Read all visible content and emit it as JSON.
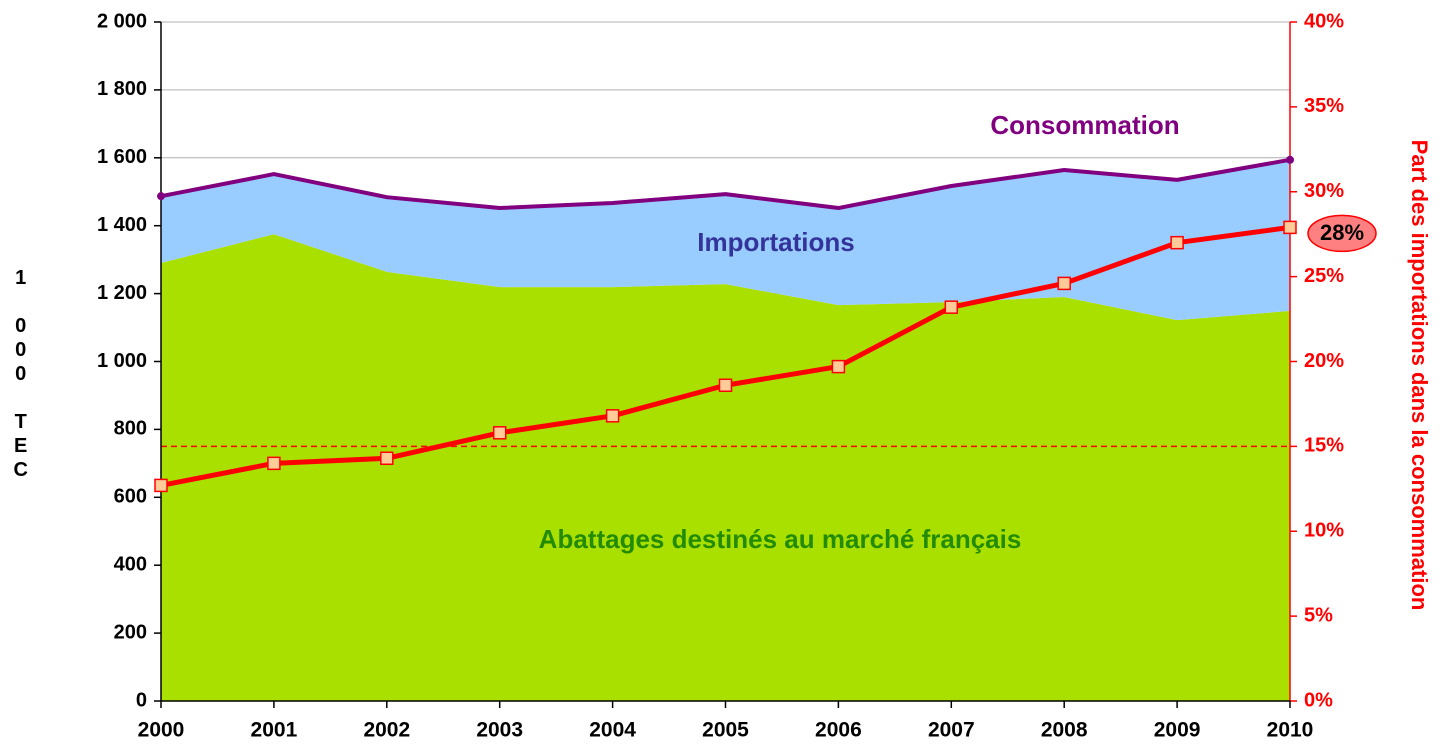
{
  "chart_data": {
    "type": "area",
    "categories": [
      "2000",
      "2001",
      "2002",
      "2003",
      "2004",
      "2005",
      "2006",
      "2007",
      "2008",
      "2009",
      "2010"
    ],
    "ylabel": "1 000 TEC",
    "y2label": "Part des importations dans la consommation",
    "ylim": [
      0,
      2000
    ],
    "yticks": [
      {
        "value": 0,
        "label": "0"
      },
      {
        "value": 200,
        "label": "200"
      },
      {
        "value": 400,
        "label": "400"
      },
      {
        "value": 600,
        "label": "600"
      },
      {
        "value": 800,
        "label": "800"
      },
      {
        "value": 1000,
        "label": "1 000"
      },
      {
        "value": 1200,
        "label": "1 200"
      },
      {
        "value": 1400,
        "label": "1 400"
      },
      {
        "value": 1600,
        "label": "1 600"
      },
      {
        "value": 1800,
        "label": "1 800"
      },
      {
        "value": 2000,
        "label": "2 000"
      }
    ],
    "y2lim": [
      0,
      40
    ],
    "y2ticks": [
      {
        "value": 0,
        "label": "0%"
      },
      {
        "value": 5,
        "label": "5%"
      },
      {
        "value": 10,
        "label": "10%"
      },
      {
        "value": 15,
        "label": "15%"
      },
      {
        "value": 20,
        "label": "20%"
      },
      {
        "value": 25,
        "label": "25%"
      },
      {
        "value": 30,
        "label": "30%"
      },
      {
        "value": 35,
        "label": "35%"
      },
      {
        "value": 40,
        "label": "40%"
      }
    ],
    "grid": true,
    "reference_line": {
      "value": 15,
      "axis": "y2",
      "color": "#ff0000"
    },
    "series": [
      {
        "name": "Abattages destinés au marché français",
        "type": "area",
        "color": "#aae000",
        "label_color": "#228b00",
        "values": [
          1290,
          1375,
          1264,
          1219,
          1219,
          1228,
          1166,
          1175,
          1190,
          1122,
          1149
        ]
      },
      {
        "name": "Importations",
        "type": "area",
        "stacked": true,
        "color": "#99ccff",
        "label_color": "#333399",
        "values": [
          197,
          177,
          220,
          233,
          248,
          265,
          286,
          342,
          374,
          413,
          445
        ]
      },
      {
        "name": "Consommation",
        "type": "line",
        "color": "#800080",
        "label_color": "#800080",
        "values": [
          1487,
          1552,
          1484,
          1452,
          1467,
          1493,
          1452,
          1517,
          1564,
          1535,
          1594
        ]
      },
      {
        "type": "line",
        "axis": "y2",
        "color": "#ff0000",
        "marker_color": "#ffcc99",
        "values": [
          12.7,
          14.0,
          14.3,
          15.8,
          16.8,
          18.6,
          19.7,
          23.2,
          24.6,
          27.0,
          27.9
        ],
        "value_labels": [
          null,
          null,
          null,
          null,
          null,
          null,
          null,
          null,
          null,
          null,
          "28%"
        ]
      }
    ]
  }
}
